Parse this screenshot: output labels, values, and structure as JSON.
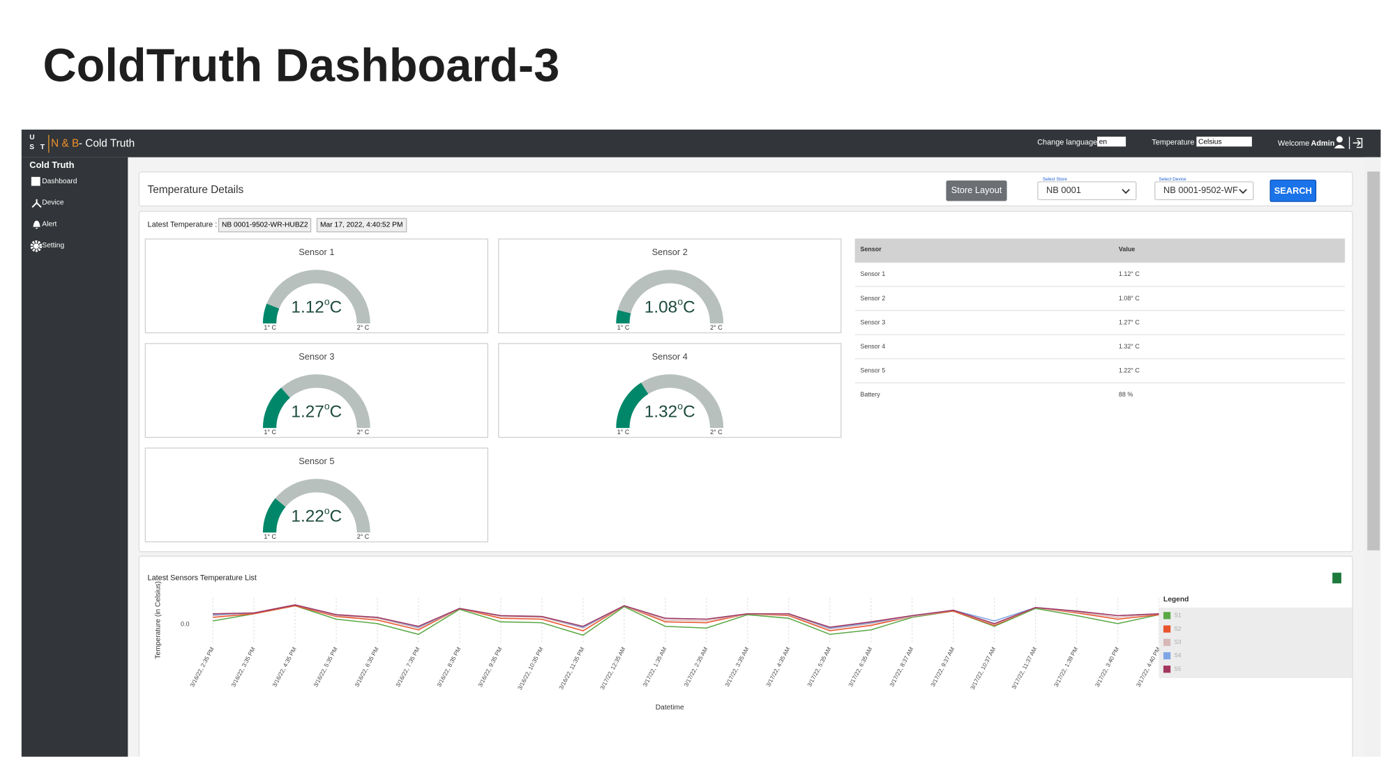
{
  "slide": {
    "title": "ColdTruth Dashboard-3"
  },
  "navbar": {
    "logo": [
      "U",
      "S",
      "T"
    ],
    "brand": "N & B",
    "app_name": " - Cold Truth",
    "language_label": "Change language",
    "language": "en",
    "temperature_label": "Temperature",
    "temperature_unit": "Celsius",
    "welcome": "Welcome",
    "user": "Admin"
  },
  "sidebar": {
    "heading": "Cold Truth",
    "items": [
      "Dashboard",
      "Device",
      "Alert",
      "Setting"
    ]
  },
  "details": {
    "title": "Temperature Details",
    "store_layout": "Store Layout",
    "store_label": "Select Store",
    "store": "NB 0001",
    "device_label": "Select Device",
    "device": "NB 0001-9502-WF",
    "search": "SEARCH"
  },
  "latest": {
    "label": "Latest Temperature :",
    "device": "NB 0001-9502-WR-HUBZ2",
    "time": "Mar 17, 2022, 4:40:52 PM"
  },
  "gauge_scale": {
    "min": {
      "value": 1,
      "label": "1° C"
    },
    "max": {
      "value": 2,
      "label": "2° C"
    },
    "unit_sup": "o",
    "unit": "C",
    "track_color": "#b7c0bd",
    "fill_color": "#00876a"
  },
  "gauges": [
    {
      "title": "Sensor 1",
      "value": 1.12
    },
    {
      "title": "Sensor 2",
      "value": 1.08
    },
    {
      "title": "Sensor 3",
      "value": 1.27
    },
    {
      "title": "Sensor 4",
      "value": 1.32
    },
    {
      "title": "Sensor 5",
      "value": 1.22
    }
  ],
  "table": {
    "header": [
      "Sensor",
      "Value"
    ],
    "rows": [
      [
        "Sensor 1",
        "1.12° C"
      ],
      [
        "Sensor 2",
        "1.08° C"
      ],
      [
        "Sensor 3",
        "1.27° C"
      ],
      [
        "Sensor 4",
        "1.32° C"
      ],
      [
        "Sensor 5",
        "1.22° C"
      ],
      [
        "Battery",
        "88 %"
      ]
    ]
  },
  "chart_data": {
    "type": "line",
    "title": "Latest Sensors Temperature List",
    "y_label": "Temperature (in Celsius)",
    "x_label": "Datetime",
    "legend_title": "Legend",
    "categories": [
      "3/16/22, 2:35 PM",
      "3/16/22, 3:35 PM",
      "3/16/22, 4:35 PM",
      "3/16/22, 5:35 PM",
      "3/16/22, 6:35 PM",
      "3/16/22, 7:35 PM",
      "3/16/22, 8:35 PM",
      "3/16/22, 9:35 PM",
      "3/16/22, 10:35 PM",
      "3/16/22, 11:35 PM",
      "3/17/22, 12:35 AM",
      "3/17/22, 1:35 AM",
      "3/17/22, 2:35 AM",
      "3/17/22, 3:35 AM",
      "3/17/22, 4:35 AM",
      "3/17/22, 5:35 AM",
      "3/17/22, 6:35 AM",
      "3/17/22, 8:37 AM",
      "3/17/22, 9:37 AM",
      "3/17/22, 10:37 AM",
      "3/17/22, 11:37 AM",
      "3/17/22, 1:39 PM",
      "3/17/22, 3:40 PM",
      "3/17/22, 4:40 PM"
    ],
    "ylim": [
      -0.2,
      0.3
    ],
    "yticks": [
      {
        "value": 0,
        "label": "0.0"
      }
    ],
    "grid": true,
    "series": [
      {
        "name": "S1",
        "color": "#5aa845",
        "values": [
          0.04,
          0.12,
          0.21,
          0.06,
          0.01,
          -0.11,
          0.17,
          0.03,
          0.02,
          -0.12,
          0.2,
          -0.02,
          -0.04,
          0.11,
          0.07,
          -0.11,
          -0.06,
          0.08,
          0.15,
          -0.02,
          0.18,
          0.1,
          0.01,
          0.11
        ]
      },
      {
        "name": "S2",
        "color": "#e8542c",
        "values": [
          0.08,
          0.12,
          0.21,
          0.09,
          0.05,
          -0.06,
          0.18,
          0.07,
          0.06,
          -0.07,
          0.21,
          0.03,
          0.02,
          0.12,
          0.1,
          -0.07,
          -0.01,
          0.09,
          0.15,
          -0.01,
          0.19,
          0.13,
          0.06,
          0.11
        ]
      },
      {
        "name": "S3",
        "color": "#d7b7b7",
        "values": [
          0.1,
          0.13,
          0.22,
          0.1,
          0.07,
          -0.04,
          0.18,
          0.09,
          0.08,
          -0.04,
          0.21,
          0.05,
          0.04,
          0.12,
          0.11,
          -0.05,
          0.01,
          0.09,
          0.16,
          0.0,
          0.19,
          0.14,
          0.08,
          0.12
        ]
      },
      {
        "name": "S4",
        "color": "#7ea6e4",
        "values": [
          0.11,
          0.13,
          0.22,
          0.11,
          0.08,
          -0.03,
          0.18,
          0.1,
          0.09,
          -0.03,
          0.21,
          0.07,
          0.06,
          0.12,
          0.12,
          -0.04,
          0.02,
          0.1,
          0.16,
          0.04,
          0.19,
          0.15,
          0.1,
          0.12
        ]
      },
      {
        "name": "S5",
        "color": "#a3365e",
        "values": [
          0.12,
          0.13,
          0.22,
          0.11,
          0.08,
          -0.02,
          0.18,
          0.1,
          0.09,
          -0.02,
          0.21,
          0.07,
          0.06,
          0.12,
          0.12,
          -0.03,
          0.03,
          0.1,
          0.16,
          0.01,
          0.19,
          0.15,
          0.1,
          0.12
        ]
      }
    ]
  }
}
